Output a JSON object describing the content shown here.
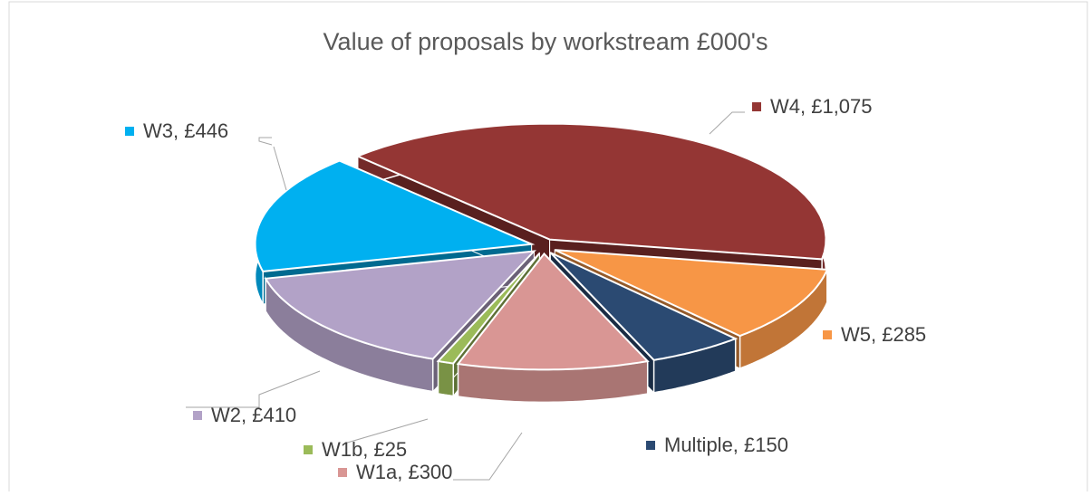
{
  "chart_data": {
    "type": "pie",
    "title": "Value of proposals by workstream £000's",
    "categories": [
      "W4",
      "W5",
      "Multiple",
      "W1a",
      "W1b",
      "W2",
      "W3"
    ],
    "values": [
      1075,
      285,
      150,
      300,
      25,
      410,
      446
    ],
    "value_labels": [
      "W4, £1,075",
      "W5, £285",
      "Multiple, £150",
      "W1a, £300",
      "W1b, £25",
      "W2, £410",
      "W3, £446"
    ],
    "colors": [
      "#943634",
      "#f79646",
      "#2b4a72",
      "#d99694",
      "#9bbb59",
      "#b2a2c7",
      "#00b0f0"
    ]
  }
}
